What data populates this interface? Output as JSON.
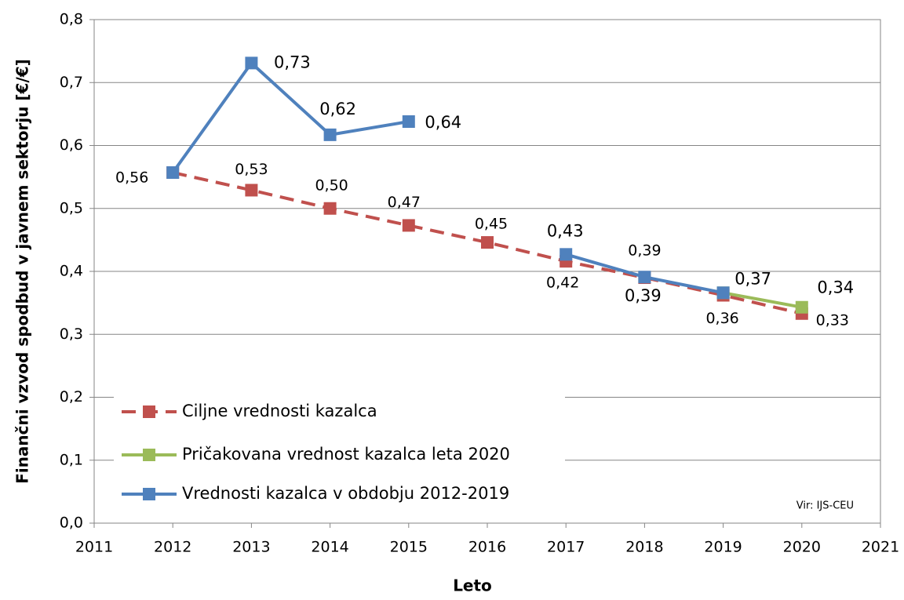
{
  "chart_data": {
    "type": "line",
    "y_label": "Finančni vzvod spodbud v javnem sektorju [€/€]",
    "x_label": "Leto",
    "annotation": "Vir: IJS-CEU",
    "xlim": [
      2011,
      2021
    ],
    "xticks": [
      2011,
      2012,
      2013,
      2014,
      2015,
      2016,
      2017,
      2018,
      2019,
      2020,
      2021
    ],
    "ylim": [
      0,
      0.8
    ],
    "yticks": [
      {
        "value": 0,
        "label": "0,0"
      },
      {
        "value": 0.1,
        "label": "0,1"
      },
      {
        "value": 0.2,
        "label": "0,2"
      },
      {
        "value": 0.3,
        "label": "0,3"
      },
      {
        "value": 0.4,
        "label": "0,4"
      },
      {
        "value": 0.5,
        "label": "0,5"
      },
      {
        "value": 0.6,
        "label": "0,6"
      },
      {
        "value": 0.7,
        "label": "0,7"
      },
      {
        "value": 0.8,
        "label": "0,8"
      }
    ],
    "grid": true,
    "legend": "lower left",
    "series": [
      {
        "name": "Ciljne vrednosti kazalca",
        "color": "#c0504d",
        "line_style": "dashed",
        "x": [
          2012,
          2013,
          2014,
          2015,
          2016,
          2017,
          2018,
          2019,
          2020
        ],
        "values": [
          0.557,
          0.529,
          0.5,
          0.473,
          0.446,
          0.416,
          0.39,
          0.362,
          0.333
        ],
        "value_labels": [
          "0,56",
          "0,53",
          "0,50",
          "0,47",
          "0,45",
          "0,42",
          "0,39",
          "0,36",
          "0,33"
        ]
      },
      {
        "name": "Pričakovana vrednost kazalca leta 2020",
        "color": "#9bbb59",
        "line_style": "solid",
        "x": [
          2019,
          2020
        ],
        "values": [
          0.366,
          0.343
        ],
        "value_labels": [
          null,
          "0,34"
        ]
      },
      {
        "name": "Vrednosti kazalca v obdobju 2012-2019",
        "color": "#4f81bd",
        "line_style": "solid",
        "x": [
          2012,
          2013,
          2014,
          2015,
          2016,
          2017,
          2018,
          2019
        ],
        "values": [
          0.557,
          0.731,
          0.617,
          0.638,
          null,
          0.427,
          0.391,
          0.366
        ],
        "value_labels": [
          null,
          "0,73",
          "0,62",
          "0,64",
          null,
          "0,43",
          "0,39",
          "0,37"
        ]
      }
    ]
  }
}
